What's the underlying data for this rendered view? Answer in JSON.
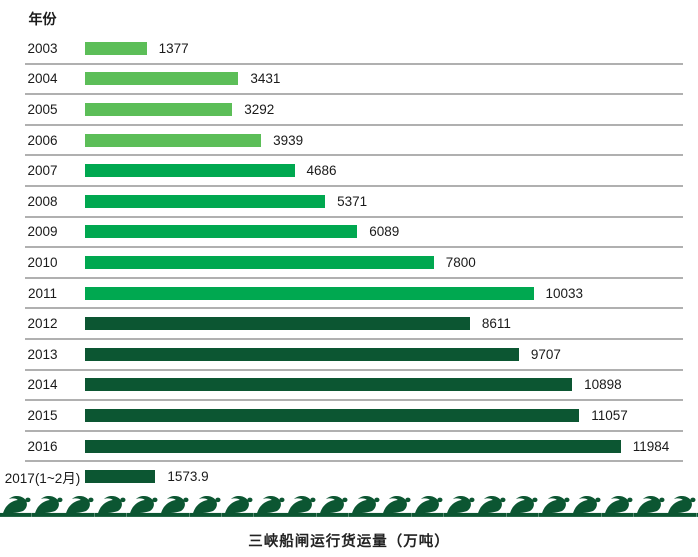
{
  "chart_data": {
    "type": "bar",
    "orientation": "horizontal",
    "title": "三峡船闸运行货运量（万吨）",
    "axis_header": "年份",
    "unit": "万吨",
    "xlim": [
      0,
      12600
    ],
    "grid": "row-dividers",
    "categories": [
      "2003",
      "2004",
      "2005",
      "2006",
      "2007",
      "2008",
      "2009",
      "2010",
      "2011",
      "2012",
      "2013",
      "2014",
      "2015",
      "2016",
      "2017(1~2月)"
    ],
    "values": [
      1377,
      3431,
      3292,
      3939,
      4686,
      5371,
      6089,
      7800,
      10033,
      8611,
      9707,
      10898,
      11057,
      11984,
      1573.9
    ],
    "rows": [
      {
        "label": "2003",
        "value": 1377,
        "display": "1377",
        "color": "light_green"
      },
      {
        "label": "2004",
        "value": 3431,
        "display": "3431",
        "color": "light_green"
      },
      {
        "label": "2005",
        "value": 3292,
        "display": "3292",
        "color": "light_green"
      },
      {
        "label": "2006",
        "value": 3939,
        "display": "3939",
        "color": "light_green"
      },
      {
        "label": "2007",
        "value": 4686,
        "display": "4686",
        "color": "medium_green"
      },
      {
        "label": "2008",
        "value": 5371,
        "display": "5371",
        "color": "medium_green"
      },
      {
        "label": "2009",
        "value": 6089,
        "display": "6089",
        "color": "medium_green"
      },
      {
        "label": "2010",
        "value": 7800,
        "display": "7800",
        "color": "medium_green"
      },
      {
        "label": "2011",
        "value": 10033,
        "display": "10033",
        "color": "medium_green"
      },
      {
        "label": "2012",
        "value": 8611,
        "display": "8611",
        "color": "dark_green"
      },
      {
        "label": "2013",
        "value": 9707,
        "display": "9707",
        "color": "dark_green"
      },
      {
        "label": "2014",
        "value": 10898,
        "display": "10898",
        "color": "dark_green"
      },
      {
        "label": "2015",
        "value": 11057,
        "display": "11057",
        "color": "dark_green"
      },
      {
        "label": "2016",
        "value": 11984,
        "display": "11984",
        "color": "dark_green"
      },
      {
        "label": "2017(1~2月)",
        "value": 1573.9,
        "display": "1573.9",
        "color": "dark_green"
      }
    ]
  },
  "colors": {
    "light_green": "#5CBE58",
    "medium_green": "#00A850",
    "dark_green": "#0C5632",
    "divider": "#B0B0B0",
    "text": "#1A1A1A",
    "wave": "#0C5632"
  }
}
